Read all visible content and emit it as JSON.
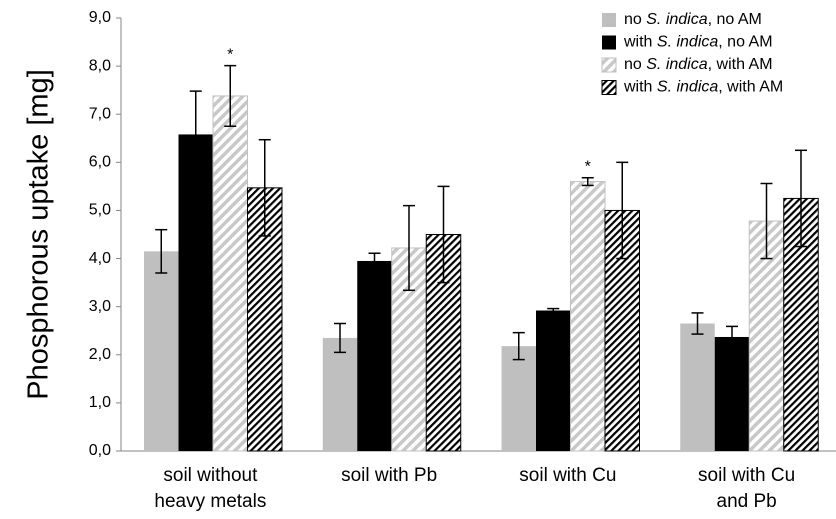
{
  "chart_data": {
    "type": "bar",
    "ylabel": "Phosphorous uptake [mg]",
    "ylim": [
      0,
      9
    ],
    "yticks": [
      "0,0",
      "1,0",
      "2,0",
      "3,0",
      "4,0",
      "5,0",
      "6,0",
      "7,0",
      "8,0",
      "9,0"
    ],
    "categories": [
      [
        "soil without",
        "heavy metals"
      ],
      [
        "soil with Pb"
      ],
      [
        "soil with Cu"
      ],
      [
        "soil with Cu",
        "and Pb"
      ]
    ],
    "series": [
      {
        "name": "no S. indica, no AM",
        "legend_parts": [
          "no ",
          "S. indica",
          ", no AM"
        ],
        "fill": "solid-gray",
        "color": "#bfbfbf",
        "values": [
          4.15,
          2.35,
          2.18,
          2.65
        ],
        "errors": [
          0.45,
          0.3,
          0.28,
          0.22
        ],
        "significance": [
          "",
          "",
          "",
          ""
        ]
      },
      {
        "name": "with S. indica, no AM",
        "legend_parts": [
          "with ",
          "S. indica",
          ", no AM"
        ],
        "fill": "solid-black",
        "color": "#000000",
        "values": [
          6.58,
          3.95,
          2.92,
          2.37
        ],
        "errors": [
          0.9,
          0.16,
          0.04,
          0.22
        ],
        "significance": [
          "",
          "",
          "",
          ""
        ]
      },
      {
        "name": "no S. indica, with AM",
        "legend_parts": [
          "no ",
          "S. indica",
          ", with AM"
        ],
        "fill": "light-gray-hatch",
        "color": "#b0b0b0",
        "values": [
          7.38,
          4.22,
          5.6,
          4.78
        ],
        "errors": [
          0.63,
          0.88,
          0.08,
          0.78
        ],
        "significance": [
          "*",
          "",
          "*",
          ""
        ]
      },
      {
        "name": "with S. indica, with AM",
        "legend_parts": [
          "with ",
          "S. indica",
          ", with AM"
        ],
        "fill": "dark-hatch",
        "color": "#000000",
        "values": [
          5.47,
          4.5,
          5.0,
          5.25
        ],
        "errors": [
          1.0,
          1.0,
          1.0,
          1.0
        ],
        "significance": [
          "",
          "",
          "",
          ""
        ]
      }
    ],
    "grid": false,
    "legend_position": "top-right"
  }
}
